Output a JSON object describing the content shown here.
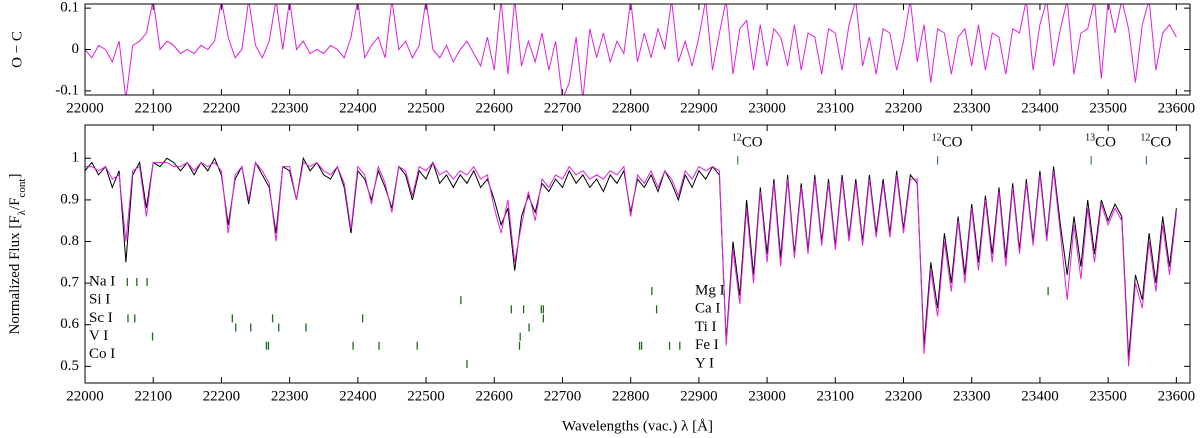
{
  "chart_data": [
    {
      "type": "line",
      "ylabel": "O − C",
      "xlim": [
        22000,
        23620
      ],
      "ylim": [
        -0.11,
        0.11
      ],
      "xticks": [
        22000,
        22100,
        22200,
        22300,
        22400,
        22500,
        22600,
        22700,
        22800,
        22900,
        23000,
        23100,
        23200,
        23300,
        23400,
        23500,
        23600
      ],
      "yticks": [
        -0.1,
        0,
        0.1
      ],
      "x": [
        22000,
        22010,
        22020,
        22030,
        22040,
        22050,
        22060,
        22070,
        22080,
        22090,
        22100,
        22110,
        22120,
        22130,
        22140,
        22150,
        22160,
        22170,
        22180,
        22190,
        22200,
        22210,
        22220,
        22230,
        22240,
        22250,
        22260,
        22270,
        22280,
        22290,
        22300,
        22310,
        22320,
        22330,
        22340,
        22350,
        22360,
        22370,
        22380,
        22390,
        22400,
        22410,
        22420,
        22430,
        22440,
        22450,
        22460,
        22470,
        22480,
        22490,
        22500,
        22510,
        22520,
        22530,
        22540,
        22550,
        22560,
        22570,
        22580,
        22590,
        22600,
        22610,
        22620,
        22630,
        22640,
        22650,
        22660,
        22670,
        22680,
        22690,
        22700,
        22710,
        22720,
        22730,
        22740,
        22750,
        22760,
        22770,
        22780,
        22790,
        22800,
        22810,
        22820,
        22830,
        22840,
        22850,
        22860,
        22870,
        22880,
        22890,
        22900,
        22910,
        22920,
        22930,
        22940,
        22950,
        22960,
        22970,
        22980,
        22990,
        23000,
        23010,
        23020,
        23030,
        23040,
        23050,
        23060,
        23070,
        23080,
        23090,
        23100,
        23110,
        23120,
        23130,
        23140,
        23150,
        23160,
        23170,
        23180,
        23190,
        23200,
        23210,
        23220,
        23230,
        23240,
        23250,
        23260,
        23270,
        23280,
        23290,
        23300,
        23310,
        23320,
        23330,
        23340,
        23350,
        23360,
        23370,
        23380,
        23390,
        23400,
        23410,
        23420,
        23430,
        23440,
        23450,
        23460,
        23470,
        23480,
        23490,
        23500,
        23510,
        23520,
        23530,
        23540,
        23550,
        23560,
        23570,
        23580,
        23590,
        23600
      ],
      "series": [
        {
          "color": "#e020e0",
          "values": [
            0.0,
            -0.02,
            0.01,
            0.0,
            -0.03,
            0.02,
            -0.12,
            0.01,
            0.02,
            0.04,
            0.12,
            0.0,
            0.02,
            0.01,
            -0.01,
            0.0,
            -0.01,
            0.01,
            0.0,
            0.02,
            0.12,
            0.03,
            -0.02,
            0.0,
            0.12,
            0.01,
            -0.02,
            0.02,
            0.12,
            0.0,
            0.12,
            0.0,
            0.02,
            -0.01,
            0.0,
            -0.01,
            0.01,
            0.0,
            -0.02,
            0.03,
            0.12,
            -0.02,
            0.01,
            0.03,
            -0.02,
            0.12,
            0.0,
            0.02,
            -0.02,
            0.01,
            0.12,
            0.0,
            -0.02,
            0.01,
            -0.03,
            0.0,
            0.02,
            -0.01,
            -0.04,
            0.03,
            -0.05,
            0.12,
            -0.06,
            0.12,
            -0.04,
            0.02,
            -0.03,
            0.04,
            -0.05,
            0.02,
            -0.12,
            -0.08,
            0.03,
            -0.12,
            0.05,
            -0.02,
            0.04,
            -0.03,
            0.02,
            -0.01,
            0.12,
            -0.03,
            0.04,
            -0.02,
            0.05,
            0.0,
            0.12,
            -0.03,
            0.02,
            -0.04,
            0.03,
            0.12,
            -0.05,
            0.04,
            0.12,
            -0.06,
            0.05,
            0.07,
            -0.05,
            0.06,
            -0.04,
            0.05,
            0.03,
            -0.04,
            0.06,
            -0.05,
            0.04,
            0.03,
            -0.06,
            0.05,
            0.04,
            -0.05,
            0.06,
            0.12,
            -0.04,
            0.03,
            -0.06,
            0.05,
            0.04,
            -0.05,
            0.02,
            0.12,
            -0.03,
            0.06,
            -0.08,
            0.05,
            0.04,
            -0.06,
            0.03,
            0.05,
            -0.04,
            0.06,
            -0.05,
            0.04,
            0.03,
            -0.06,
            0.05,
            0.04,
            0.12,
            -0.05,
            0.06,
            0.12,
            -0.04,
            0.05,
            0.12,
            -0.06,
            0.04,
            0.05,
            0.12,
            -0.07,
            0.12,
            0.04,
            0.12,
            0.05,
            -0.08,
            0.06,
            0.12,
            -0.05,
            0.04,
            0.06,
            0.03
          ]
        }
      ]
    },
    {
      "type": "line",
      "xlabel": "Wavelengths (vac.) λ [Å]",
      "ylabel_parts": [
        {
          "text": "Normalized Flux [F"
        },
        {
          "text": "λ",
          "subscript": true
        },
        {
          "text": "/F"
        },
        {
          "text": "cont",
          "subscript": true
        },
        {
          "text": "]"
        }
      ],
      "xlim": [
        22000,
        23620
      ],
      "ylim": [
        0.46,
        1.08
      ],
      "xticks": [
        22000,
        22100,
        22200,
        22300,
        22400,
        22500,
        22600,
        22700,
        22800,
        22900,
        23000,
        23100,
        23200,
        23300,
        23400,
        23500,
        23600
      ],
      "yticks": [
        0.5,
        0.6,
        0.7,
        0.8,
        0.9,
        1
      ],
      "x": [
        22000,
        22010,
        22020,
        22030,
        22040,
        22050,
        22060,
        22070,
        22080,
        22090,
        22100,
        22110,
        22120,
        22130,
        22140,
        22150,
        22160,
        22170,
        22180,
        22190,
        22200,
        22210,
        22220,
        22230,
        22240,
        22250,
        22260,
        22270,
        22280,
        22290,
        22300,
        22310,
        22320,
        22330,
        22340,
        22350,
        22360,
        22370,
        22380,
        22390,
        22400,
        22410,
        22420,
        22430,
        22440,
        22450,
        22460,
        22470,
        22480,
        22490,
        22500,
        22510,
        22520,
        22530,
        22540,
        22550,
        22560,
        22570,
        22580,
        22590,
        22600,
        22610,
        22620,
        22630,
        22640,
        22650,
        22660,
        22670,
        22680,
        22690,
        22700,
        22710,
        22720,
        22730,
        22740,
        22750,
        22760,
        22770,
        22780,
        22790,
        22800,
        22810,
        22820,
        22830,
        22840,
        22850,
        22860,
        22870,
        22880,
        22890,
        22900,
        22910,
        22920,
        22930,
        22940,
        22950,
        22960,
        22970,
        22980,
        22990,
        23000,
        23010,
        23020,
        23030,
        23040,
        23050,
        23060,
        23070,
        23080,
        23090,
        23100,
        23110,
        23120,
        23130,
        23140,
        23150,
        23160,
        23170,
        23180,
        23190,
        23200,
        23210,
        23220,
        23230,
        23240,
        23250,
        23260,
        23270,
        23280,
        23290,
        23300,
        23310,
        23320,
        23330,
        23340,
        23350,
        23360,
        23370,
        23380,
        23390,
        23400,
        23410,
        23420,
        23430,
        23440,
        23450,
        23460,
        23470,
        23480,
        23490,
        23500,
        23510,
        23520,
        23530,
        23540,
        23550,
        23560,
        23570,
        23580,
        23590,
        23600
      ],
      "series": [
        {
          "color": "#000000",
          "values": [
            0.97,
            0.99,
            0.96,
            0.98,
            0.93,
            0.97,
            0.75,
            0.96,
            0.99,
            0.88,
            0.99,
            0.98,
            1.0,
            0.99,
            0.97,
            0.99,
            0.96,
            0.99,
            0.97,
            1.0,
            0.96,
            0.84,
            0.95,
            0.98,
            0.89,
            0.99,
            0.96,
            0.93,
            0.82,
            0.98,
            0.97,
            0.9,
            1.0,
            0.97,
            0.99,
            0.96,
            0.95,
            0.98,
            0.93,
            0.82,
            0.97,
            0.95,
            0.9,
            0.97,
            0.93,
            0.88,
            0.98,
            0.96,
            0.9,
            0.97,
            0.95,
            0.99,
            0.94,
            0.96,
            0.93,
            0.96,
            0.94,
            0.97,
            0.93,
            0.95,
            0.9,
            0.84,
            0.88,
            0.73,
            0.86,
            0.91,
            0.87,
            0.94,
            0.92,
            0.95,
            0.93,
            0.97,
            0.94,
            0.96,
            0.93,
            0.95,
            0.92,
            0.96,
            0.94,
            0.97,
            0.87,
            0.95,
            0.93,
            0.96,
            0.92,
            0.97,
            0.94,
            0.9,
            0.96,
            0.93,
            0.97,
            0.95,
            0.98,
            0.96,
            0.56,
            0.8,
            0.67,
            0.9,
            0.72,
            0.93,
            0.77,
            0.95,
            0.76,
            0.96,
            0.77,
            0.94,
            0.78,
            0.96,
            0.8,
            0.95,
            0.79,
            0.96,
            0.81,
            0.95,
            0.8,
            0.96,
            0.82,
            0.95,
            0.82,
            0.97,
            0.83,
            0.96,
            0.94,
            0.55,
            0.75,
            0.64,
            0.82,
            0.7,
            0.86,
            0.72,
            0.89,
            0.75,
            0.91,
            0.77,
            0.93,
            0.76,
            0.94,
            0.78,
            0.95,
            0.8,
            0.97,
            0.81,
            0.98,
            0.84,
            0.72,
            0.86,
            0.74,
            0.9,
            0.77,
            0.9,
            0.85,
            0.89,
            0.86,
            0.52,
            0.72,
            0.66,
            0.82,
            0.7,
            0.86,
            0.74,
            0.88
          ]
        },
        {
          "color": "#e020e0",
          "values": [
            0.98,
            0.98,
            0.97,
            0.98,
            0.95,
            0.96,
            0.8,
            0.97,
            0.98,
            0.86,
            0.99,
            0.99,
            0.99,
            0.98,
            0.98,
            0.99,
            0.97,
            0.99,
            0.98,
            0.99,
            0.97,
            0.82,
            0.96,
            0.98,
            0.9,
            0.99,
            0.97,
            0.94,
            0.8,
            0.98,
            0.98,
            0.9,
            0.99,
            0.98,
            0.99,
            0.97,
            0.96,
            0.98,
            0.94,
            0.83,
            0.98,
            0.96,
            0.89,
            0.98,
            0.94,
            0.87,
            0.98,
            0.97,
            0.91,
            0.98,
            0.97,
            0.99,
            0.96,
            0.97,
            0.95,
            0.97,
            0.96,
            0.98,
            0.95,
            0.96,
            0.88,
            0.82,
            0.9,
            0.75,
            0.84,
            0.92,
            0.85,
            0.95,
            0.93,
            0.96,
            0.95,
            0.98,
            0.96,
            0.97,
            0.95,
            0.96,
            0.95,
            0.97,
            0.96,
            0.98,
            0.86,
            0.96,
            0.94,
            0.97,
            0.93,
            0.97,
            0.95,
            0.91,
            0.97,
            0.95,
            0.98,
            0.97,
            0.98,
            0.97,
            0.55,
            0.78,
            0.65,
            0.88,
            0.7,
            0.92,
            0.75,
            0.94,
            0.74,
            0.95,
            0.76,
            0.93,
            0.77,
            0.95,
            0.79,
            0.94,
            0.78,
            0.95,
            0.8,
            0.94,
            0.79,
            0.95,
            0.81,
            0.94,
            0.81,
            0.96,
            0.82,
            0.95,
            0.95,
            0.53,
            0.73,
            0.62,
            0.8,
            0.68,
            0.85,
            0.7,
            0.88,
            0.73,
            0.9,
            0.75,
            0.92,
            0.74,
            0.93,
            0.77,
            0.94,
            0.79,
            0.96,
            0.8,
            0.97,
            0.82,
            0.66,
            0.84,
            0.71,
            0.88,
            0.75,
            0.89,
            0.84,
            0.88,
            0.85,
            0.5,
            0.7,
            0.64,
            0.8,
            0.68,
            0.84,
            0.72,
            0.87
          ]
        }
      ],
      "annotation_color": "#1a6e1a",
      "molecule_labels": [
        {
          "isotope": "12",
          "molecule": "CO",
          "x": 22957
        },
        {
          "isotope": "12",
          "molecule": "CO",
          "x": 23250
        },
        {
          "isotope": "13",
          "molecule": "CO",
          "x": 23475
        },
        {
          "isotope": "12",
          "molecule": "CO",
          "x": 23556
        }
      ],
      "line_ids": [
        {
          "label": "Na I",
          "wavelengths": [
            22062,
            22076,
            22091
          ]
        },
        {
          "label": "Si I",
          "wavelengths": [
            22551
          ]
        },
        {
          "label": "Sc I",
          "wavelengths": [
            22063,
            22073,
            22216,
            22275,
            22407,
            22672
          ]
        },
        {
          "label": "V I",
          "wavelengths": [
            22099,
            22638
          ]
        },
        {
          "label": "Co I",
          "wavelengths": []
        },
        {
          "label": "Mg I",
          "wavelengths": [
            22831,
            23412
          ]
        },
        {
          "label": "Ca I",
          "wavelengths": [
            22625,
            22643,
            22669,
            22672,
            22838
          ]
        },
        {
          "label": "Ti I",
          "wavelengths": [
            22221,
            22243,
            22284,
            22324,
            22651
          ]
        },
        {
          "label": "Fe I",
          "wavelengths": [
            22266,
            22269,
            22393,
            22431,
            22487,
            22637,
            22813,
            22816,
            22857,
            22872
          ]
        },
        {
          "label": "Y I",
          "wavelengths": [
            22560
          ]
        }
      ]
    }
  ]
}
